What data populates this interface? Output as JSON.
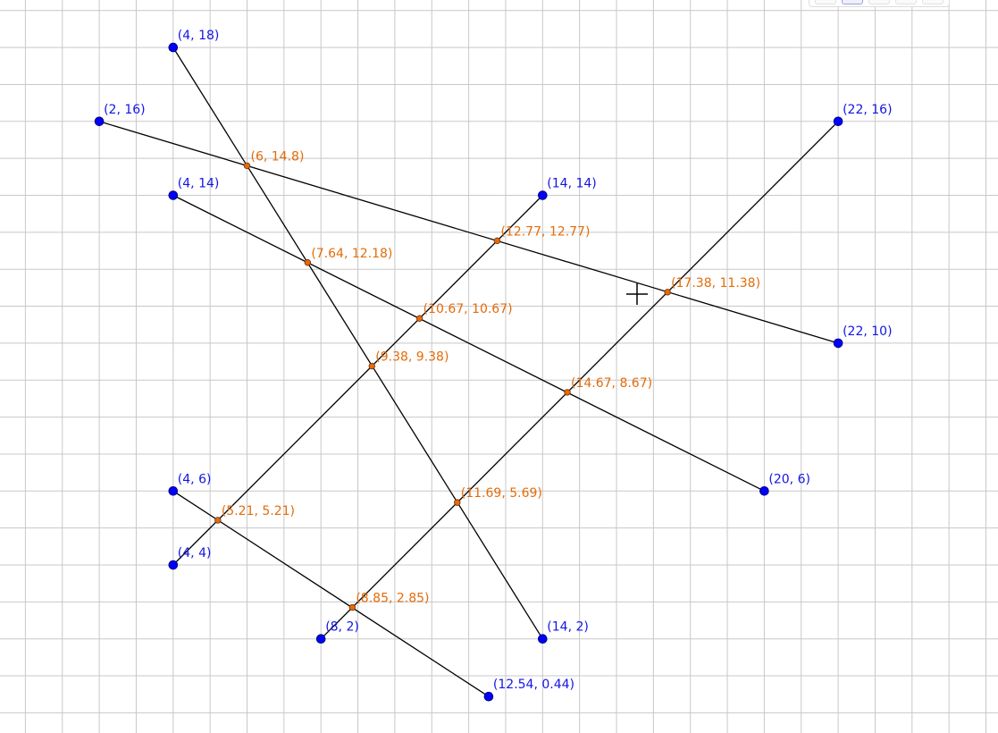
{
  "colors": {
    "free_point": "#1414e6",
    "intersection_point": "#e36c0a",
    "segment": "#000000",
    "grid": "#c8c8c8"
  },
  "toolbar": {
    "buttons": [
      "style-button-1",
      "style-button-2",
      "style-button-3",
      "style-button-4",
      "style-button-5"
    ],
    "active_index": 1
  },
  "cursor": {
    "icon": "crosshair-cursor-icon"
  },
  "points": [
    {
      "id": "A",
      "x": 4,
      "y": 18,
      "label": "(4, 18)",
      "kind": "free"
    },
    {
      "id": "B",
      "x": 2,
      "y": 16,
      "label": "(2, 16)",
      "kind": "free"
    },
    {
      "id": "C",
      "x": 4,
      "y": 14,
      "label": "(4, 14)",
      "kind": "free"
    },
    {
      "id": "D",
      "x": 14,
      "y": 14,
      "label": "(14, 14)",
      "kind": "free"
    },
    {
      "id": "E",
      "x": 22,
      "y": 16,
      "label": "(22, 16)",
      "kind": "free"
    },
    {
      "id": "F",
      "x": 22,
      "y": 10,
      "label": "(22, 10)",
      "kind": "free"
    },
    {
      "id": "G",
      "x": 20,
      "y": 6,
      "label": "(20, 6)",
      "kind": "free"
    },
    {
      "id": "H",
      "x": 4,
      "y": 6,
      "label": "(4, 6)",
      "kind": "free"
    },
    {
      "id": "I",
      "x": 4,
      "y": 4,
      "label": "(4, 4)",
      "kind": "free"
    },
    {
      "id": "J",
      "x": 8,
      "y": 2,
      "label": "(8, 2)",
      "kind": "free"
    },
    {
      "id": "K",
      "x": 14,
      "y": 2,
      "label": "(14, 2)",
      "kind": "free"
    },
    {
      "id": "L",
      "x": 12.54,
      "y": 0.44,
      "label": "(12.54, 0.44)",
      "kind": "free"
    },
    {
      "id": "P1",
      "x": 6,
      "y": 14.8,
      "label": "(6, 14.8)",
      "kind": "intersection"
    },
    {
      "id": "P2",
      "x": 7.64,
      "y": 12.18,
      "label": "(7.64, 12.18)",
      "kind": "intersection"
    },
    {
      "id": "P3",
      "x": 12.77,
      "y": 12.77,
      "label": "(12.77, 12.77)",
      "kind": "intersection"
    },
    {
      "id": "P4",
      "x": 17.38,
      "y": 11.38,
      "label": "(17.38, 11.38)",
      "kind": "intersection"
    },
    {
      "id": "P5",
      "x": 10.67,
      "y": 10.67,
      "label": "(10.67, 10.67)",
      "kind": "intersection"
    },
    {
      "id": "P6",
      "x": 9.38,
      "y": 9.38,
      "label": "(9.38, 9.38)",
      "kind": "intersection"
    },
    {
      "id": "P7",
      "x": 14.67,
      "y": 8.67,
      "label": "(14.67, 8.67)",
      "kind": "intersection"
    },
    {
      "id": "P8",
      "x": 11.69,
      "y": 5.69,
      "label": "(11.69, 5.69)",
      "kind": "intersection"
    },
    {
      "id": "P9",
      "x": 5.21,
      "y": 5.21,
      "label": "(5.21, 5.21)",
      "kind": "intersection"
    },
    {
      "id": "P10",
      "x": 8.85,
      "y": 2.85,
      "label": "(8.85, 2.85)",
      "kind": "intersection"
    }
  ],
  "segments": [
    {
      "from": "A",
      "to": "K"
    },
    {
      "from": "B",
      "to": "F"
    },
    {
      "from": "C",
      "to": "G"
    },
    {
      "from": "I",
      "to": "D"
    },
    {
      "from": "J",
      "to": "E"
    },
    {
      "from": "H",
      "to": "L"
    }
  ]
}
